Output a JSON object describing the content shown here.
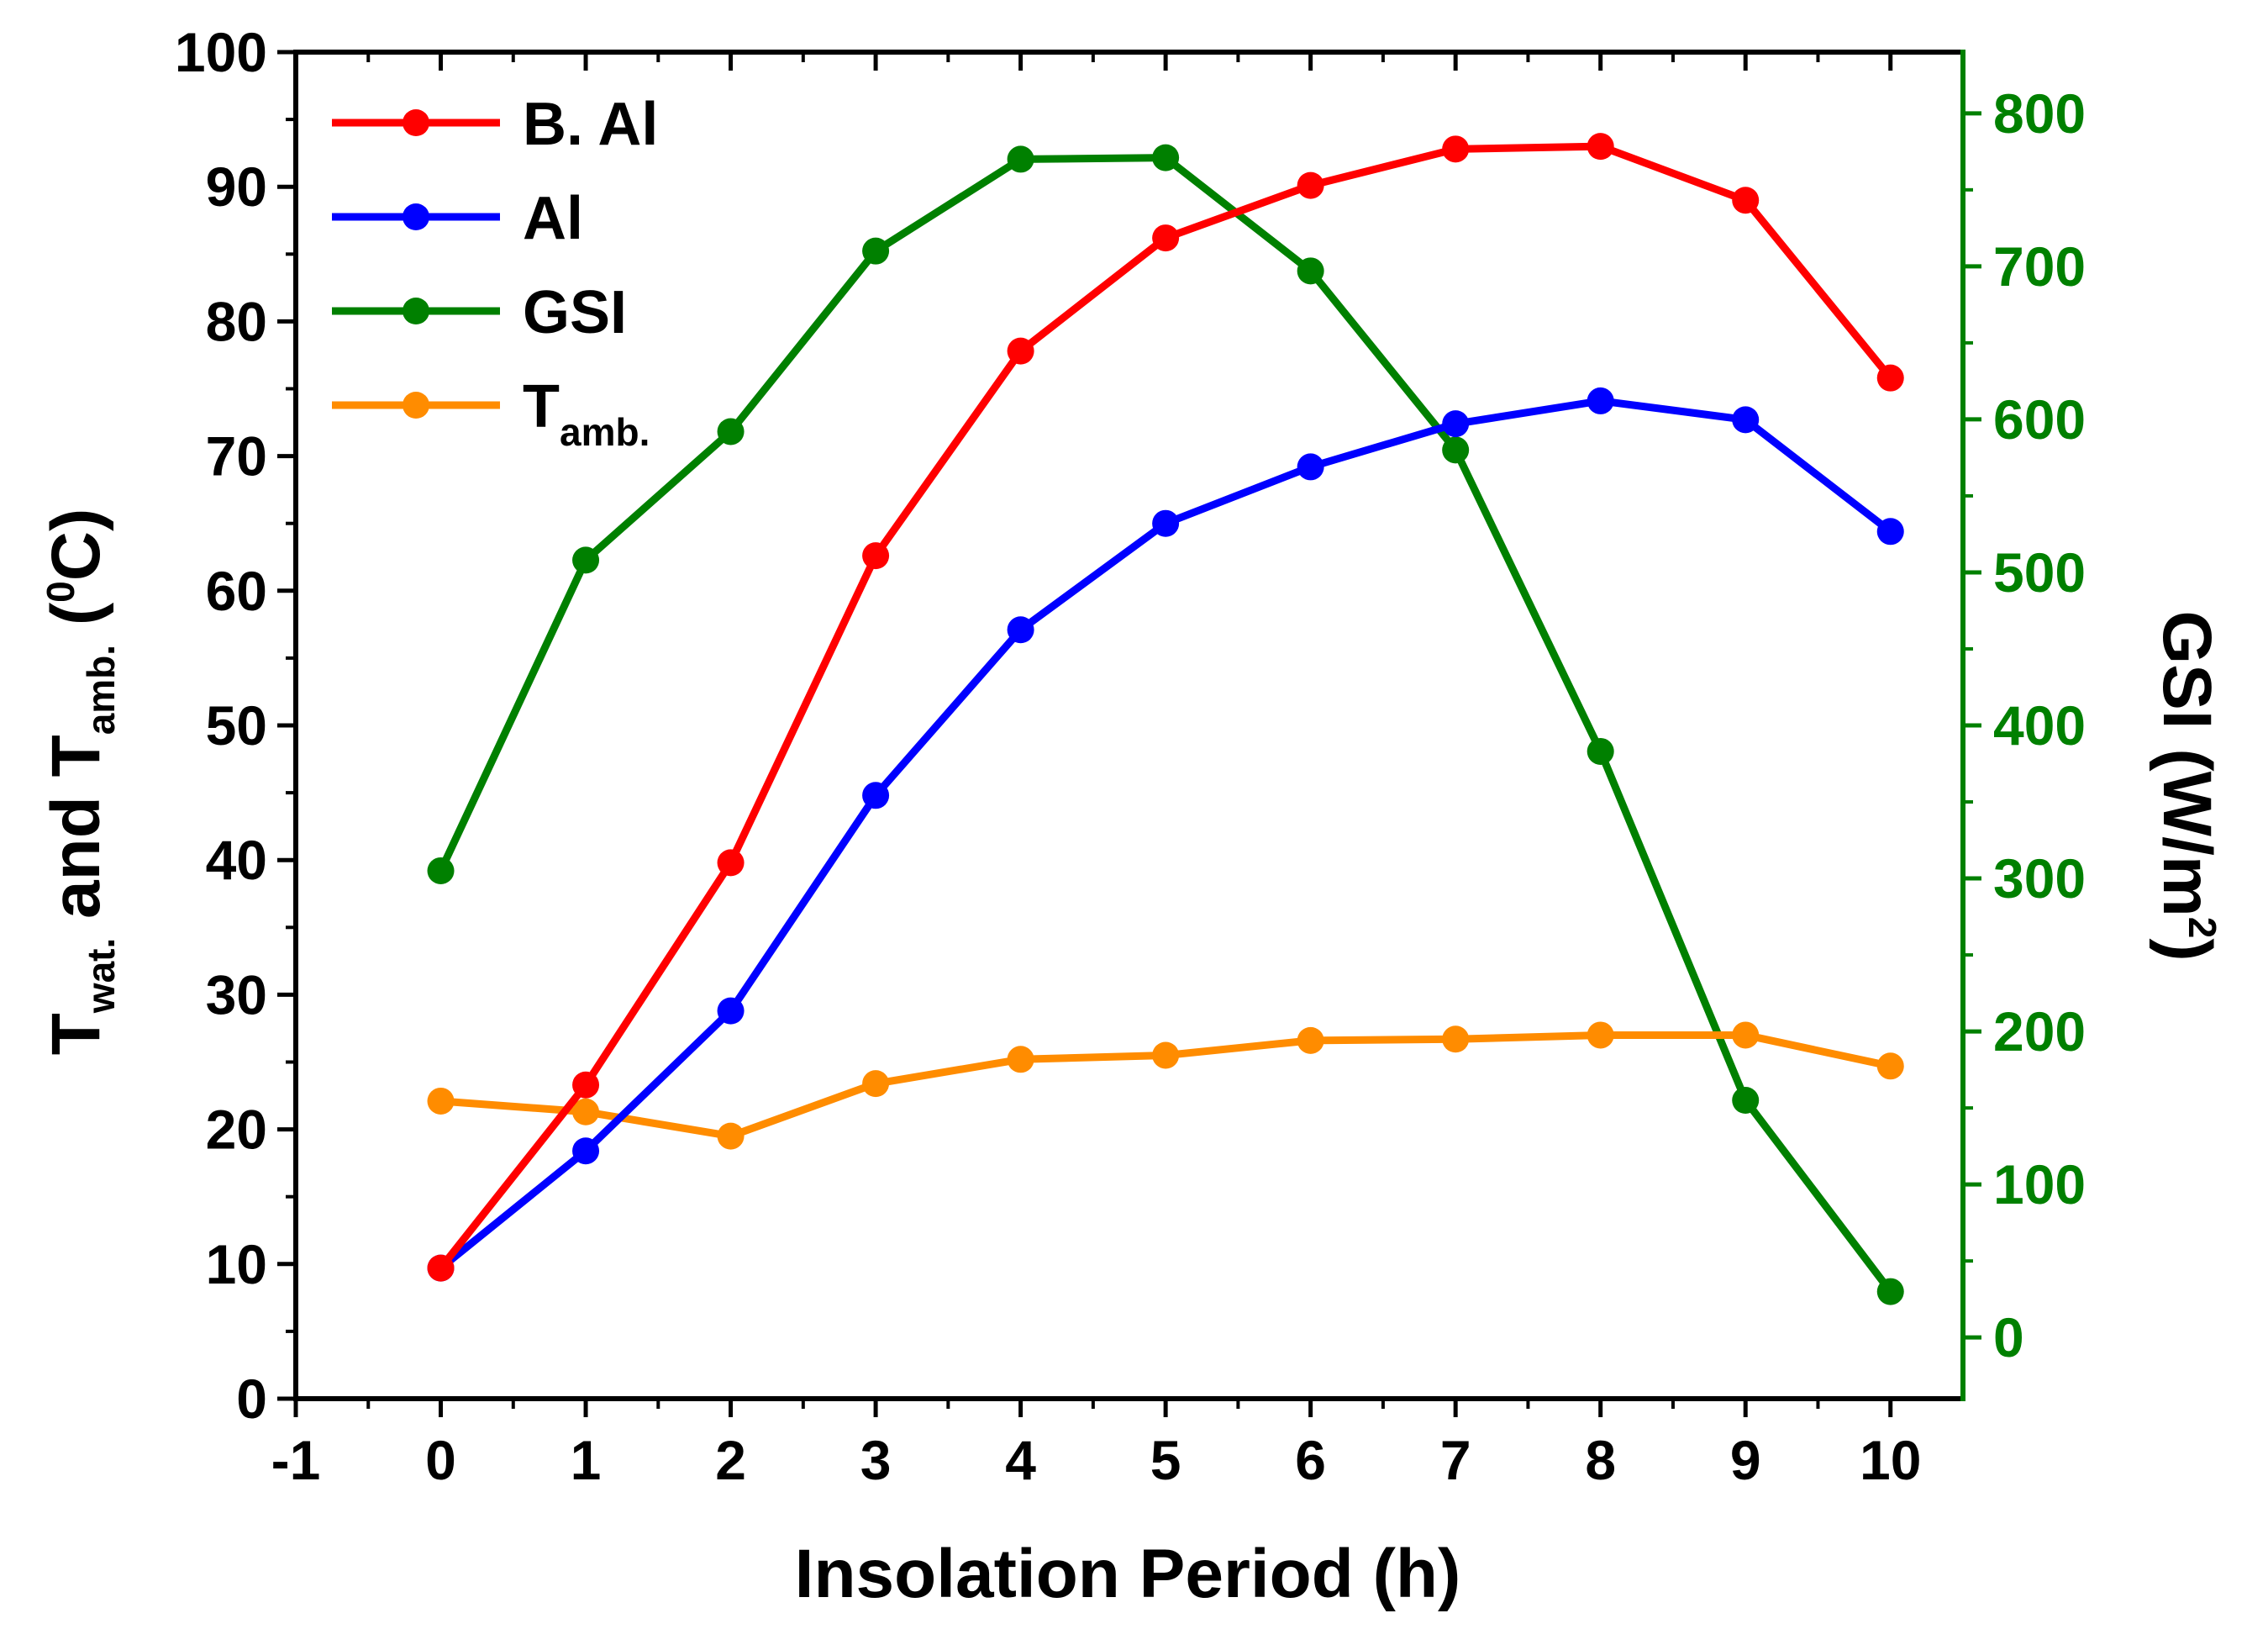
{
  "chart_data": {
    "type": "line",
    "x": [
      0,
      1,
      2,
      3,
      4,
      5,
      6,
      7,
      8,
      9,
      10
    ],
    "xlabel": "Insolation Period (h)",
    "xlim": [
      -1,
      10.5
    ],
    "xticks": [
      "-1",
      "0",
      "1",
      "2",
      "3",
      "4",
      "5",
      "6",
      "7",
      "8",
      "9",
      "10"
    ],
    "ylabel_left": {
      "t1": "T",
      "s1": "wat.",
      "mid": " and T",
      "s2": "amb.",
      "open": " (",
      "sup": "0",
      "close": "C)"
    },
    "ylim_left": [
      0,
      100
    ],
    "yticks_left": [
      "0",
      "10",
      "20",
      "30",
      "40",
      "50",
      "60",
      "70",
      "80",
      "90",
      "100"
    ],
    "ylabel_right": {
      "main": "GSI (W/m",
      "sup": "2",
      "close": ")"
    },
    "ylim_right": [
      -40,
      840
    ],
    "yticks_right": [
      "0",
      "100",
      "200",
      "300",
      "400",
      "500",
      "600",
      "700",
      "800"
    ],
    "series": [
      {
        "name": "B. Al",
        "axis": "left",
        "color": "#ff0000",
        "values": [
          9.7,
          23.3,
          39.8,
          62.6,
          77.8,
          86.2,
          90.1,
          92.8,
          93.0,
          89.0,
          75.8
        ]
      },
      {
        "name": "Al",
        "axis": "left",
        "color": "#0000ff",
        "values": [
          9.7,
          18.4,
          28.8,
          44.8,
          57.1,
          65.0,
          69.2,
          72.4,
          74.1,
          72.7,
          64.4
        ]
      },
      {
        "name": "GSI",
        "axis": "right",
        "color": "#008000",
        "values": [
          305,
          508,
          592,
          710,
          770,
          771,
          697,
          580,
          383,
          155,
          30
        ]
      },
      {
        "name": "T",
        "name_sub": "amb.",
        "axis": "left",
        "color": "#ff8c00",
        "values": [
          22.1,
          21.3,
          19.5,
          23.4,
          25.2,
          25.5,
          26.6,
          26.7,
          27.0,
          27.0,
          24.7
        ]
      }
    ],
    "right_axis_color": "#008000",
    "legend_position": "top-left"
  }
}
